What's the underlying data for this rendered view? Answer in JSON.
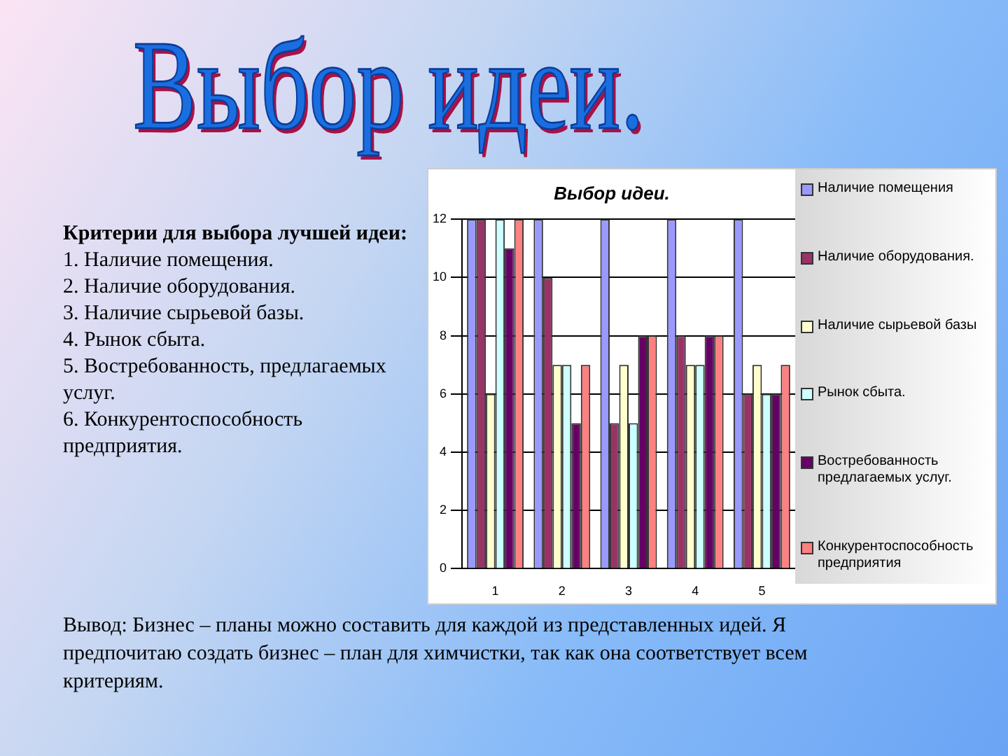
{
  "chart_data": {
    "type": "bar",
    "title": "Выбор идеи.",
    "categories": [
      "1",
      "2",
      "3",
      "4",
      "5"
    ],
    "series": [
      {
        "name": "Наличие помещения",
        "color": "#9999ff",
        "values": [
          12,
          12,
          12,
          12,
          12
        ]
      },
      {
        "name": "Наличие оборудования.",
        "color": "#993366",
        "values": [
          12,
          10,
          5,
          8,
          6
        ]
      },
      {
        "name": "Наличие сырьевой базы",
        "color": "#ffffcc",
        "values": [
          6,
          7,
          7,
          7,
          7
        ]
      },
      {
        "name": "Рынок сбыта.",
        "color": "#ccffff",
        "values": [
          12,
          7,
          5,
          7,
          6
        ]
      },
      {
        "name": "Востребованность предлагаемых услуг.",
        "color": "#660066",
        "values": [
          11,
          5,
          8,
          8,
          6
        ]
      },
      {
        "name": "Конкурентоспособность предприятия",
        "color": "#ff8080",
        "values": [
          12,
          7,
          8,
          8,
          7
        ]
      }
    ],
    "ylim": [
      0,
      12
    ],
    "yticks": [
      0,
      2,
      4,
      6,
      8,
      10,
      12
    ],
    "grid": "y",
    "legend": "right",
    "annotations": [
      "Выбор идеи.",
      "Критерии для выбора лучшей идеи:",
      "1. Наличие помещения.",
      "2. Наличие оборудования.",
      "3. Наличие сырьевой базы.",
      "4. Рынок сбыта.",
      "5. Востребованность, предлагаемых услуг.",
      "6. Конкурентоспособность предприятия.",
      "Вывод: Бизнес – планы можно составить для каждой из представленных идей. Я предпочитаю создать бизнес – план для химчистки, так как она соответствует всем критериям."
    ]
  }
}
